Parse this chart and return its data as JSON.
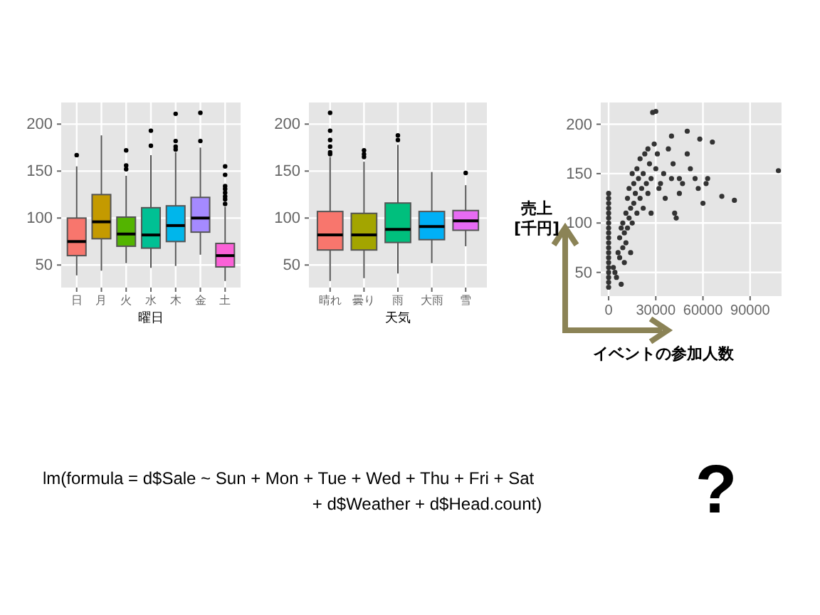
{
  "chart_data": [
    {
      "type": "box",
      "xlabel": "曜日",
      "categories": [
        "日",
        "月",
        "火",
        "水",
        "木",
        "金",
        "土"
      ],
      "ylim": [
        26,
        223
      ],
      "yticks": [
        50,
        100,
        150,
        200
      ],
      "grid": true,
      "series": [
        {
          "colors": [
            "#f8766d",
            "#c49a00",
            "#53b400",
            "#00c094",
            "#00b6eb",
            "#a58aff",
            "#fb61d7"
          ],
          "boxes": [
            {
              "low": 39,
              "q1": 60,
              "median": 75,
              "q3": 100,
              "high": 155,
              "outliers": [
                167
              ]
            },
            {
              "low": 44,
              "q1": 78,
              "median": 96,
              "q3": 125,
              "high": 188
            },
            {
              "low": 52,
              "q1": 70,
              "median": 83,
              "q3": 101,
              "high": 145,
              "outliers": [
                172,
                156,
                152
              ]
            },
            {
              "low": 47,
              "q1": 68,
              "median": 82,
              "q3": 111,
              "high": 167,
              "outliers": [
                193,
                177
              ]
            },
            {
              "low": 49,
              "q1": 75,
              "median": 92,
              "q3": 113,
              "high": 170,
              "outliers": [
                211,
                182,
                176,
                173
              ]
            },
            {
              "low": 61,
              "q1": 85,
              "median": 100,
              "q3": 122,
              "high": 175,
              "outliers": [
                212,
                182
              ]
            },
            {
              "low": 33,
              "q1": 48,
              "median": 60,
              "q3": 73,
              "high": 112,
              "outliers": [
                155,
                146,
                134,
                131,
                127,
                123,
                120,
                115
              ]
            }
          ]
        }
      ]
    },
    {
      "type": "box",
      "xlabel": "天気",
      "categories": [
        "晴れ",
        "曇り",
        "雨",
        "大雨",
        "雪"
      ],
      "ylim": [
        26,
        223
      ],
      "yticks": [
        50,
        100,
        150,
        200
      ],
      "grid": true,
      "series": [
        {
          "colors": [
            "#f8766d",
            "#a3a500",
            "#00bf7d",
            "#00b0f6",
            "#e76bf3"
          ],
          "boxes": [
            {
              "low": 33,
              "q1": 66,
              "median": 82,
              "q3": 107,
              "high": 165,
              "outliers": [
                212,
                193,
                183,
                176,
                170,
                168
              ]
            },
            {
              "low": 36,
              "q1": 66,
              "median": 82,
              "q3": 105,
              "high": 160,
              "outliers": [
                172,
                168,
                165
              ]
            },
            {
              "low": 41,
              "q1": 74,
              "median": 88,
              "q3": 116,
              "high": 178,
              "outliers": [
                188,
                183
              ]
            },
            {
              "low": 52,
              "q1": 77,
              "median": 91,
              "q3": 107,
              "high": 149
            },
            {
              "low": 70,
              "q1": 87,
              "median": 97,
              "q3": 108,
              "high": 135,
              "outliers": [
                148
              ]
            }
          ]
        }
      ]
    },
    {
      "type": "scatter",
      "xlabel": "イベントの参加人数",
      "ylabel": "売上\n[千円]",
      "xlim": [
        -5000,
        110000
      ],
      "xticks": [
        0,
        30000,
        60000,
        90000
      ],
      "ylim": [
        26,
        222
      ],
      "yticks": [
        50,
        100,
        150,
        200
      ],
      "grid": true,
      "marker": "circle",
      "series": [
        {
          "color": "#333333",
          "x": [
            0,
            0,
            0,
            0,
            0,
            0,
            0,
            0,
            0,
            0,
            0,
            0,
            0,
            0,
            0,
            0,
            0,
            0,
            0,
            0,
            3000,
            4000,
            5000,
            6000,
            7000,
            7000,
            8000,
            8000,
            9000,
            9000,
            10000,
            10000,
            11000,
            11000,
            12000,
            12000,
            13000,
            13000,
            14000,
            14000,
            15000,
            15000,
            16000,
            16000,
            17000,
            18000,
            18000,
            19000,
            20000,
            20000,
            21000,
            22000,
            22000,
            23000,
            24000,
            25000,
            25000,
            26000,
            27000,
            27000,
            28000,
            29000,
            30000,
            30000,
            31000,
            32000,
            33000,
            35000,
            36000,
            38000,
            40000,
            40000,
            41000,
            42000,
            43000,
            45000,
            45000,
            47000,
            50000,
            50000,
            52000,
            55000,
            57000,
            58000,
            60000,
            62000,
            63000,
            66000,
            72000,
            80000,
            108000
          ],
          "values": [
            35,
            40,
            45,
            50,
            55,
            60,
            65,
            70,
            75,
            80,
            85,
            90,
            95,
            100,
            105,
            110,
            115,
            120,
            125,
            130,
            55,
            50,
            45,
            70,
            65,
            85,
            38,
            95,
            75,
            100,
            90,
            60,
            110,
            80,
            95,
            125,
            105,
            135,
            115,
            70,
            150,
            100,
            120,
            140,
            130,
            155,
            110,
            145,
            125,
            165,
            135,
            150,
            115,
            170,
            140,
            175,
            130,
            160,
            145,
            110,
            212,
            180,
            213,
            155,
            170,
            135,
            140,
            150,
            125,
            175,
            145,
            188,
            160,
            110,
            105,
            145,
            130,
            140,
            193,
            170,
            155,
            145,
            135,
            185,
            120,
            140,
            145,
            182,
            127,
            123,
            153
          ]
        }
      ]
    },
    {
      "type": "other",
      "annotations": [
        "lm(formula = d$Sale ~ Sun + Mon + Tue + Wed + Thu + Fri + Sat",
        "+ d$Weather + d$Head.count)",
        "?"
      ]
    }
  ]
}
